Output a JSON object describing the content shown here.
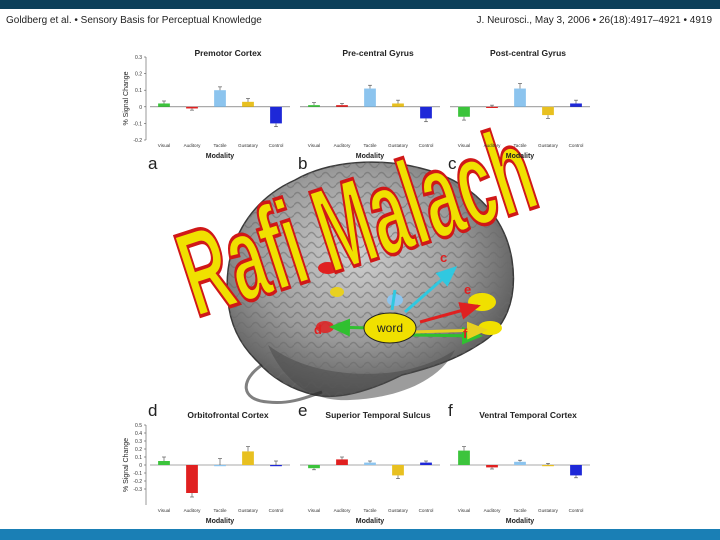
{
  "header": {
    "left": "Goldberg et al. • Sensory Basis for Perceptual Knowledge",
    "right": "J. Neurosci., May 3, 2006 • 26(18):4917–4921 • 4919"
  },
  "overlay": {
    "watermark": "Rafi Malach",
    "word_label": "word",
    "brain_labels": [
      "a",
      "b",
      "c",
      "d",
      "e",
      "f"
    ]
  },
  "colors": {
    "visual": "#3cc43c",
    "auditory": "#e02020",
    "tactile": "#8cc4ee",
    "gustatory": "#e8c020",
    "control": "#1e28d8",
    "top_bar": "#0c3f5a",
    "bottom_bar": "#1a7fb5",
    "watermark_fill": "#f0e000",
    "watermark_stroke": "#d01818"
  },
  "chart_data": [
    {
      "type": "bar",
      "panel_letter": "a",
      "title": "Premotor Cortex",
      "categories": [
        "Visual",
        "Auditory",
        "Tactile",
        "Gustatory",
        "Control"
      ],
      "values": [
        0.02,
        -0.01,
        0.1,
        0.03,
        -0.1
      ],
      "errors": [
        0.015,
        0.01,
        0.02,
        0.02,
        0.02
      ],
      "ylabel": "% Signal Change",
      "xlabel": "Modality",
      "ylim": [
        -0.2,
        0.3
      ],
      "yticks": [
        "0.3",
        "0.2",
        "0.1",
        "0",
        "-0.1",
        "-0.2"
      ]
    },
    {
      "type": "bar",
      "panel_letter": "b",
      "title": "Pre-central Gyrus",
      "categories": [
        "Visual",
        "Auditory",
        "Tactile",
        "Gustatory",
        "Control"
      ],
      "values": [
        0.01,
        0.01,
        0.11,
        0.02,
        -0.07
      ],
      "errors": [
        0.015,
        0.01,
        0.02,
        0.02,
        0.02
      ],
      "ylabel": "",
      "xlabel": "Modality",
      "ylim": [
        -0.2,
        0.3
      ],
      "yticks": []
    },
    {
      "type": "bar",
      "panel_letter": "c",
      "title": "Post-central Gyrus",
      "categories": [
        "Visual",
        "Auditory",
        "Tactile",
        "Gustatory",
        "Control"
      ],
      "values": [
        -0.06,
        0.0,
        0.11,
        -0.05,
        0.02
      ],
      "errors": [
        0.02,
        0.01,
        0.03,
        0.02,
        0.02
      ],
      "ylabel": "",
      "xlabel": "Modality",
      "ylim": [
        -0.2,
        0.3
      ],
      "yticks": []
    },
    {
      "type": "bar",
      "panel_letter": "d",
      "title": "Orbitofrontal Cortex",
      "categories": [
        "Visual",
        "Auditory",
        "Tactile",
        "Gustatory",
        "Control"
      ],
      "values": [
        0.05,
        -0.35,
        0.0,
        0.17,
        0.0
      ],
      "errors": [
        0.05,
        0.05,
        0.08,
        0.06,
        0.05
      ],
      "ylabel": "% Signal Change",
      "xlabel": "Modality",
      "ylim": [
        -0.5,
        0.5
      ],
      "yticks": [
        "0.5",
        "0.4",
        "0.3",
        "0.2",
        "0.1",
        "0",
        "-0.1",
        "-0.2",
        "-0.3"
      ]
    },
    {
      "type": "bar",
      "panel_letter": "e",
      "title": "Superior Temporal Sulcus",
      "categories": [
        "Visual",
        "Auditory",
        "Tactile",
        "Gustatory",
        "Control"
      ],
      "values": [
        -0.04,
        0.07,
        0.03,
        -0.13,
        0.03
      ],
      "errors": [
        0.02,
        0.03,
        0.02,
        0.04,
        0.02
      ],
      "ylabel": "",
      "xlabel": "Modality",
      "ylim": [
        -0.5,
        0.5
      ],
      "yticks": []
    },
    {
      "type": "bar",
      "panel_letter": "f",
      "title": "Ventral Temporal Cortex",
      "categories": [
        "Visual",
        "Auditory",
        "Tactile",
        "Gustatory",
        "Control"
      ],
      "values": [
        0.18,
        -0.03,
        0.04,
        0.0,
        -0.13
      ],
      "errors": [
        0.05,
        0.02,
        0.02,
        0.02,
        0.03
      ],
      "ylabel": "",
      "xlabel": "Modality",
      "ylim": [
        -0.5,
        0.5
      ],
      "yticks": []
    }
  ]
}
